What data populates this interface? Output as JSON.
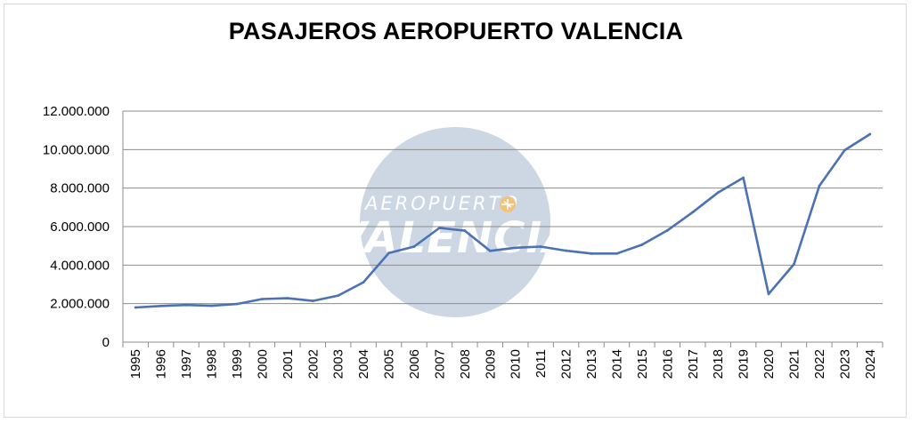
{
  "chart_data": {
    "type": "line",
    "title": "PASAJEROS AEROPUERTO VALENCIA",
    "xlabel": "",
    "ylabel": "",
    "ylim": [
      0,
      12000000
    ],
    "yticks": [
      0,
      2000000,
      4000000,
      6000000,
      8000000,
      10000000,
      12000000
    ],
    "ytick_labels": [
      "0",
      "2.000.000",
      "4.000.000",
      "6.000.000",
      "8.000.000",
      "10.000.000",
      "12.000.000"
    ],
    "grid": true,
    "legend": "none",
    "series_color": "#4a72b5",
    "categories": [
      "1995",
      "1996",
      "1997",
      "1998",
      "1999",
      "2000",
      "2001",
      "2002",
      "2003",
      "2004",
      "2005",
      "2006",
      "2007",
      "2008",
      "2009",
      "2010",
      "2011",
      "2012",
      "2013",
      "2014",
      "2015",
      "2016",
      "2017",
      "2018",
      "2019",
      "2020",
      "2021",
      "2022",
      "2023",
      "2024"
    ],
    "series": [
      {
        "values": [
          1800000,
          1880000,
          1930000,
          1890000,
          1980000,
          2240000,
          2280000,
          2140000,
          2420000,
          3110000,
          4630000,
          4960000,
          5930000,
          5790000,
          4740000,
          4900000,
          4960000,
          4750000,
          4600000,
          4600000,
          5060000,
          5800000,
          6750000,
          7770000,
          8540000,
          2500000,
          4050000,
          8110000,
          9970000,
          10800000
        ]
      }
    ]
  },
  "watermark": {
    "line1": "AEROPUERTO",
    "line2": "VALENCIA",
    "circle_color": "#cdd6e3"
  }
}
